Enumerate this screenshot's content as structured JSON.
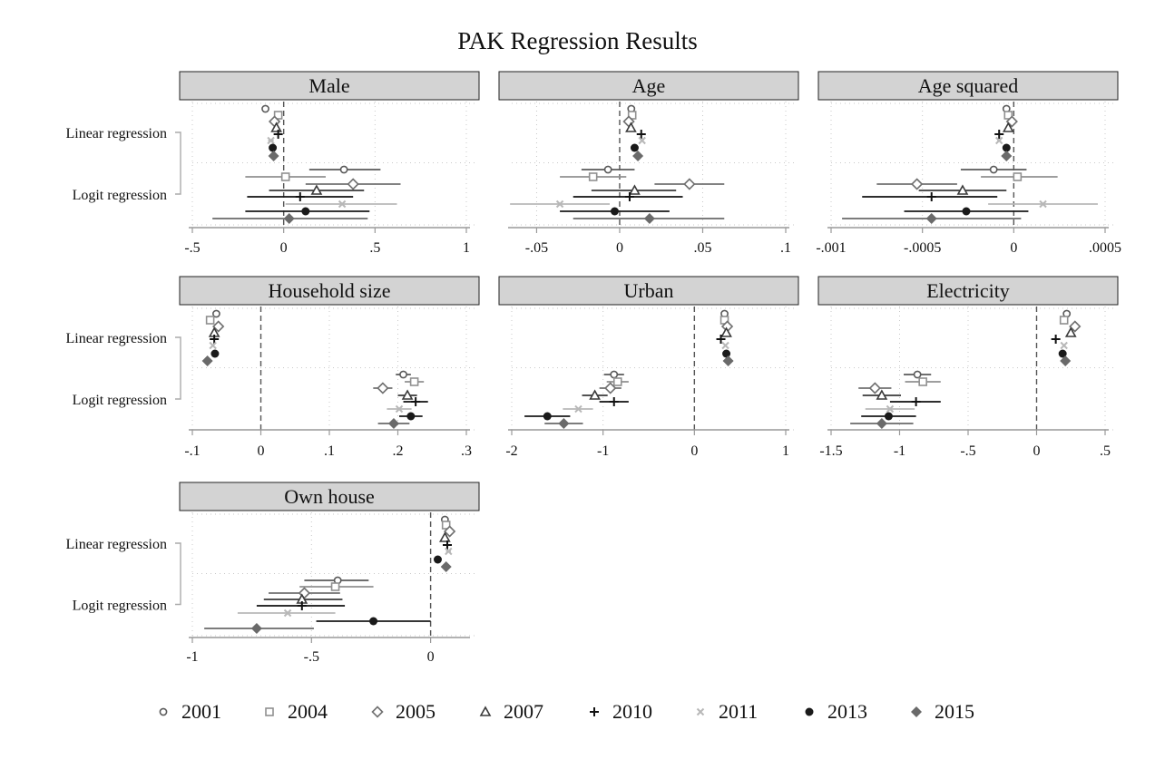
{
  "title": "PAK Regression Results",
  "row_labels": [
    "Linear regression",
    "Logit regression"
  ],
  "years": [
    "2001",
    "2004",
    "2005",
    "2007",
    "2010",
    "2011",
    "2013",
    "2015"
  ],
  "series_style": {
    "2001": {
      "marker": "circle-open",
      "color": "#5a5a5a"
    },
    "2004": {
      "marker": "square-open",
      "color": "#909090"
    },
    "2005": {
      "marker": "diamond-open",
      "color": "#707070"
    },
    "2007": {
      "marker": "triangle-open",
      "color": "#3a3a3a"
    },
    "2010": {
      "marker": "plus",
      "color": "#111111"
    },
    "2011": {
      "marker": "x",
      "color": "#b8b8b8"
    },
    "2013": {
      "marker": "circle-filled",
      "color": "#1a1a1a"
    },
    "2015": {
      "marker": "diamond-filled",
      "color": "#6a6a6a"
    }
  },
  "chart_data": [
    {
      "type": "scatter",
      "panel": "Male",
      "xlim": [
        -0.5,
        1
      ],
      "ticks": [
        -0.5,
        0,
        0.5,
        1
      ],
      "tick_labels": [
        "-.5",
        "0",
        ".5",
        "1"
      ],
      "linear": [
        {
          "year": "2001",
          "estimate": -0.1,
          "ci": [
            -0.11,
            -0.09
          ]
        },
        {
          "year": "2004",
          "estimate": -0.03,
          "ci": [
            -0.045,
            -0.015
          ]
        },
        {
          "year": "2005",
          "estimate": -0.05,
          "ci": [
            -0.065,
            -0.035
          ]
        },
        {
          "year": "2007",
          "estimate": -0.04,
          "ci": [
            -0.055,
            -0.025
          ]
        },
        {
          "year": "2010",
          "estimate": -0.03,
          "ci": [
            -0.045,
            -0.015
          ]
        },
        {
          "year": "2011",
          "estimate": -0.07,
          "ci": [
            -0.085,
            -0.055
          ]
        },
        {
          "year": "2013",
          "estimate": -0.06,
          "ci": [
            -0.075,
            -0.045
          ]
        },
        {
          "year": "2015",
          "estimate": -0.055,
          "ci": [
            -0.07,
            -0.04
          ]
        }
      ],
      "logit": [
        {
          "year": "2001",
          "estimate": 0.33,
          "ci": [
            0.14,
            0.53
          ]
        },
        {
          "year": "2004",
          "estimate": 0.01,
          "ci": [
            -0.21,
            0.23
          ]
        },
        {
          "year": "2005",
          "estimate": 0.38,
          "ci": [
            0.12,
            0.64
          ]
        },
        {
          "year": "2007",
          "estimate": 0.18,
          "ci": [
            -0.08,
            0.44
          ]
        },
        {
          "year": "2010",
          "estimate": 0.09,
          "ci": [
            -0.2,
            0.38
          ]
        },
        {
          "year": "2011",
          "estimate": 0.32,
          "ci": [
            0.01,
            0.62
          ]
        },
        {
          "year": "2013",
          "estimate": 0.12,
          "ci": [
            -0.21,
            0.47
          ]
        },
        {
          "year": "2015",
          "estimate": 0.03,
          "ci": [
            -0.39,
            0.46
          ]
        }
      ]
    },
    {
      "type": "scatter",
      "panel": "Age",
      "xlim": [
        -0.065,
        0.1
      ],
      "ticks": [
        -0.05,
        0,
        0.05,
        0.1
      ],
      "tick_labels": [
        "-.05",
        "0",
        ".05",
        ".1"
      ],
      "linear": [
        {
          "year": "2001",
          "estimate": 0.007,
          "ci": [
            0.006,
            0.008
          ]
        },
        {
          "year": "2004",
          "estimate": 0.0075,
          "ci": [
            0.0065,
            0.0085
          ]
        },
        {
          "year": "2005",
          "estimate": 0.0055,
          "ci": [
            0.0045,
            0.0065
          ]
        },
        {
          "year": "2007",
          "estimate": 0.0068,
          "ci": [
            0.0058,
            0.0078
          ]
        },
        {
          "year": "2010",
          "estimate": 0.013,
          "ci": [
            0.012,
            0.014
          ]
        },
        {
          "year": "2011",
          "estimate": 0.0135,
          "ci": [
            0.0125,
            0.0145
          ]
        },
        {
          "year": "2013",
          "estimate": 0.009,
          "ci": [
            0.008,
            0.01
          ]
        },
        {
          "year": "2015",
          "estimate": 0.011,
          "ci": [
            0.01,
            0.012
          ]
        }
      ],
      "logit": [
        {
          "year": "2001",
          "estimate": -0.007,
          "ci": [
            -0.023,
            0.009
          ]
        },
        {
          "year": "2004",
          "estimate": -0.016,
          "ci": [
            -0.036,
            0.004
          ]
        },
        {
          "year": "2005",
          "estimate": 0.042,
          "ci": [
            0.021,
            0.063
          ]
        },
        {
          "year": "2007",
          "estimate": 0.009,
          "ci": [
            -0.017,
            0.034
          ]
        },
        {
          "year": "2010",
          "estimate": 0.006,
          "ci": [
            -0.028,
            0.038
          ]
        },
        {
          "year": "2011",
          "estimate": -0.036,
          "ci": [
            -0.066,
            -0.006
          ]
        },
        {
          "year": "2013",
          "estimate": -0.003,
          "ci": [
            -0.036,
            0.03
          ]
        },
        {
          "year": "2015",
          "estimate": 0.018,
          "ci": [
            -0.028,
            0.063
          ]
        }
      ]
    },
    {
      "type": "scatter",
      "panel": "Age squared",
      "xlim": [
        -0.001,
        0.0005
      ],
      "ticks": [
        -0.001,
        -0.0005,
        0,
        0.0005
      ],
      "tick_labels": [
        "-.001",
        "-.0005",
        "0",
        ".0005"
      ],
      "linear": [
        {
          "year": "2001",
          "estimate": -4e-05,
          "ci": [
            -5e-05,
            -3e-05
          ]
        },
        {
          "year": "2004",
          "estimate": -3e-05,
          "ci": [
            -4e-05,
            -2e-05
          ]
        },
        {
          "year": "2005",
          "estimate": -1e-05,
          "ci": [
            -2e-05,
            0
          ]
        },
        {
          "year": "2007",
          "estimate": -3e-05,
          "ci": [
            -4e-05,
            -2e-05
          ]
        },
        {
          "year": "2010",
          "estimate": -8e-05,
          "ci": [
            -9e-05,
            -7e-05
          ]
        },
        {
          "year": "2011",
          "estimate": -8e-05,
          "ci": [
            -9e-05,
            -7e-05
          ]
        },
        {
          "year": "2013",
          "estimate": -4e-05,
          "ci": [
            -5e-05,
            -3e-05
          ]
        },
        {
          "year": "2015",
          "estimate": -4e-05,
          "ci": [
            -5e-05,
            -3e-05
          ]
        }
      ],
      "logit": [
        {
          "year": "2001",
          "estimate": -0.00011,
          "ci": [
            -0.00029,
            7e-05
          ]
        },
        {
          "year": "2004",
          "estimate": 2e-05,
          "ci": [
            -0.00018,
            0.00024
          ]
        },
        {
          "year": "2005",
          "estimate": -0.00053,
          "ci": [
            -0.00075,
            -0.00031
          ]
        },
        {
          "year": "2007",
          "estimate": -0.00028,
          "ci": [
            -0.00052,
            -4e-05
          ]
        },
        {
          "year": "2010",
          "estimate": -0.00045,
          "ci": [
            -0.00083,
            -9e-05
          ]
        },
        {
          "year": "2011",
          "estimate": 0.00016,
          "ci": [
            -0.00014,
            0.00046
          ]
        },
        {
          "year": "2013",
          "estimate": -0.00026,
          "ci": [
            -0.0006,
            8e-05
          ]
        },
        {
          "year": "2015",
          "estimate": -0.00045,
          "ci": [
            -0.00094,
            4e-05
          ]
        }
      ]
    },
    {
      "type": "scatter",
      "panel": "Household size",
      "xlim": [
        -0.1,
        0.3
      ],
      "ticks": [
        -0.1,
        0,
        0.1,
        0.2,
        0.3
      ],
      "tick_labels": [
        "-.1",
        "0",
        ".1",
        ".2",
        ".3"
      ],
      "linear": [
        {
          "year": "2001",
          "estimate": -0.065,
          "ci": [
            -0.066,
            -0.064
          ]
        },
        {
          "year": "2004",
          "estimate": -0.074,
          "ci": [
            -0.075,
            -0.073
          ]
        },
        {
          "year": "2005",
          "estimate": -0.062,
          "ci": [
            -0.063,
            -0.061
          ]
        },
        {
          "year": "2007",
          "estimate": -0.068,
          "ci": [
            -0.069,
            -0.067
          ]
        },
        {
          "year": "2010",
          "estimate": -0.068,
          "ci": [
            -0.069,
            -0.067
          ]
        },
        {
          "year": "2011",
          "estimate": -0.07,
          "ci": [
            -0.071,
            -0.069
          ]
        },
        {
          "year": "2013",
          "estimate": -0.067,
          "ci": [
            -0.068,
            -0.066
          ]
        },
        {
          "year": "2015",
          "estimate": -0.078,
          "ci": [
            -0.079,
            -0.077
          ]
        }
      ],
      "logit": [
        {
          "year": "2001",
          "estimate": 0.208,
          "ci": [
            0.197,
            0.219
          ]
        },
        {
          "year": "2004",
          "estimate": 0.224,
          "ci": [
            0.21,
            0.238
          ]
        },
        {
          "year": "2005",
          "estimate": 0.178,
          "ci": [
            0.164,
            0.192
          ]
        },
        {
          "year": "2007",
          "estimate": 0.214,
          "ci": [
            0.2,
            0.228
          ]
        },
        {
          "year": "2010",
          "estimate": 0.226,
          "ci": [
            0.208,
            0.244
          ]
        },
        {
          "year": "2011",
          "estimate": 0.202,
          "ci": [
            0.184,
            0.22
          ]
        },
        {
          "year": "2013",
          "estimate": 0.219,
          "ci": [
            0.202,
            0.236
          ]
        },
        {
          "year": "2015",
          "estimate": 0.194,
          "ci": [
            0.171,
            0.217
          ]
        }
      ]
    },
    {
      "type": "scatter",
      "panel": "Urban",
      "xlim": [
        -2,
        1
      ],
      "ticks": [
        -2,
        -1,
        0,
        1
      ],
      "tick_labels": [
        "-2",
        "-1",
        "0",
        "1"
      ],
      "linear": [
        {
          "year": "2001",
          "estimate": 0.33,
          "ci": [
            0.32,
            0.34
          ]
        },
        {
          "year": "2004",
          "estimate": 0.33,
          "ci": [
            0.32,
            0.34
          ]
        },
        {
          "year": "2005",
          "estimate": 0.36,
          "ci": [
            0.35,
            0.37
          ]
        },
        {
          "year": "2007",
          "estimate": 0.35,
          "ci": [
            0.34,
            0.36
          ]
        },
        {
          "year": "2010",
          "estimate": 0.29,
          "ci": [
            0.28,
            0.3
          ]
        },
        {
          "year": "2011",
          "estimate": 0.34,
          "ci": [
            0.33,
            0.35
          ]
        },
        {
          "year": "2013",
          "estimate": 0.35,
          "ci": [
            0.34,
            0.36
          ]
        },
        {
          "year": "2015",
          "estimate": 0.37,
          "ci": [
            0.36,
            0.38
          ]
        }
      ],
      "logit": [
        {
          "year": "2001",
          "estimate": -0.88,
          "ci": [
            -0.99,
            -0.77
          ]
        },
        {
          "year": "2004",
          "estimate": -0.84,
          "ci": [
            -0.96,
            -0.72
          ]
        },
        {
          "year": "2005",
          "estimate": -0.92,
          "ci": [
            -1.04,
            -0.8
          ]
        },
        {
          "year": "2007",
          "estimate": -1.09,
          "ci": [
            -1.23,
            -0.95
          ]
        },
        {
          "year": "2010",
          "estimate": -0.88,
          "ci": [
            -1.04,
            -0.72
          ]
        },
        {
          "year": "2011",
          "estimate": -1.27,
          "ci": [
            -1.44,
            -1.11
          ]
        },
        {
          "year": "2013",
          "estimate": -1.61,
          "ci": [
            -1.86,
            -1.36
          ]
        },
        {
          "year": "2015",
          "estimate": -1.43,
          "ci": [
            -1.64,
            -1.22
          ]
        }
      ]
    },
    {
      "type": "scatter",
      "panel": "Electricity",
      "xlim": [
        -1.5,
        0.5
      ],
      "ticks": [
        -1.5,
        -1,
        -0.5,
        0,
        0.5
      ],
      "tick_labels": [
        "-1.5",
        "-1",
        "-.5",
        "0",
        ".5"
      ],
      "linear": [
        {
          "year": "2001",
          "estimate": 0.22,
          "ci": [
            0.21,
            0.23
          ]
        },
        {
          "year": "2004",
          "estimate": 0.2,
          "ci": [
            0.19,
            0.21
          ]
        },
        {
          "year": "2005",
          "estimate": 0.28,
          "ci": [
            0.27,
            0.29
          ]
        },
        {
          "year": "2007",
          "estimate": 0.25,
          "ci": [
            0.24,
            0.26
          ]
        },
        {
          "year": "2010",
          "estimate": 0.14,
          "ci": [
            0.13,
            0.15
          ]
        },
        {
          "year": "2011",
          "estimate": 0.2,
          "ci": [
            0.19,
            0.21
          ]
        },
        {
          "year": "2013",
          "estimate": 0.19,
          "ci": [
            0.18,
            0.2
          ]
        },
        {
          "year": "2015",
          "estimate": 0.21,
          "ci": [
            0.2,
            0.22
          ]
        }
      ],
      "logit": [
        {
          "year": "2001",
          "estimate": -0.87,
          "ci": [
            -0.97,
            -0.77
          ]
        },
        {
          "year": "2004",
          "estimate": -0.83,
          "ci": [
            -0.96,
            -0.7
          ]
        },
        {
          "year": "2005",
          "estimate": -1.18,
          "ci": [
            -1.3,
            -1.06
          ]
        },
        {
          "year": "2007",
          "estimate": -1.13,
          "ci": [
            -1.27,
            -0.99
          ]
        },
        {
          "year": "2010",
          "estimate": -0.88,
          "ci": [
            -1.07,
            -0.7
          ]
        },
        {
          "year": "2011",
          "estimate": -1.07,
          "ci": [
            -1.25,
            -0.89
          ]
        },
        {
          "year": "2013",
          "estimate": -1.08,
          "ci": [
            -1.28,
            -0.88
          ]
        },
        {
          "year": "2015",
          "estimate": -1.13,
          "ci": [
            -1.36,
            -0.9
          ]
        }
      ]
    },
    {
      "type": "scatter",
      "panel": "Own house",
      "xlim": [
        -1,
        0.15
      ],
      "ticks": [
        -1,
        -0.5,
        0
      ],
      "tick_labels": [
        "-1",
        "-.5",
        "0"
      ],
      "linear": [
        {
          "year": "2001",
          "estimate": 0.06,
          "ci": [
            0.05,
            0.07
          ]
        },
        {
          "year": "2004",
          "estimate": 0.065,
          "ci": [
            0.055,
            0.075
          ]
        },
        {
          "year": "2005",
          "estimate": 0.08,
          "ci": [
            0.07,
            0.09
          ]
        },
        {
          "year": "2007",
          "estimate": 0.06,
          "ci": [
            0.05,
            0.07
          ]
        },
        {
          "year": "2010",
          "estimate": 0.07,
          "ci": [
            0.06,
            0.08
          ]
        },
        {
          "year": "2011",
          "estimate": 0.075,
          "ci": [
            0.065,
            0.085
          ]
        },
        {
          "year": "2013",
          "estimate": 0.03,
          "ci": [
            0.02,
            0.04
          ]
        },
        {
          "year": "2015",
          "estimate": 0.065,
          "ci": [
            0.055,
            0.075
          ]
        }
      ],
      "logit": [
        {
          "year": "2001",
          "estimate": -0.39,
          "ci": [
            -0.53,
            -0.26
          ]
        },
        {
          "year": "2004",
          "estimate": -0.4,
          "ci": [
            -0.55,
            -0.24
          ]
        },
        {
          "year": "2005",
          "estimate": -0.53,
          "ci": [
            -0.68,
            -0.38
          ]
        },
        {
          "year": "2007",
          "estimate": -0.54,
          "ci": [
            -0.7,
            -0.37
          ]
        },
        {
          "year": "2010",
          "estimate": -0.54,
          "ci": [
            -0.73,
            -0.36
          ]
        },
        {
          "year": "2011",
          "estimate": -0.6,
          "ci": [
            -0.81,
            -0.4
          ]
        },
        {
          "year": "2013",
          "estimate": -0.24,
          "ci": [
            -0.48,
            0.0
          ]
        },
        {
          "year": "2015",
          "estimate": -0.73,
          "ci": [
            -0.95,
            -0.49
          ]
        }
      ]
    }
  ]
}
